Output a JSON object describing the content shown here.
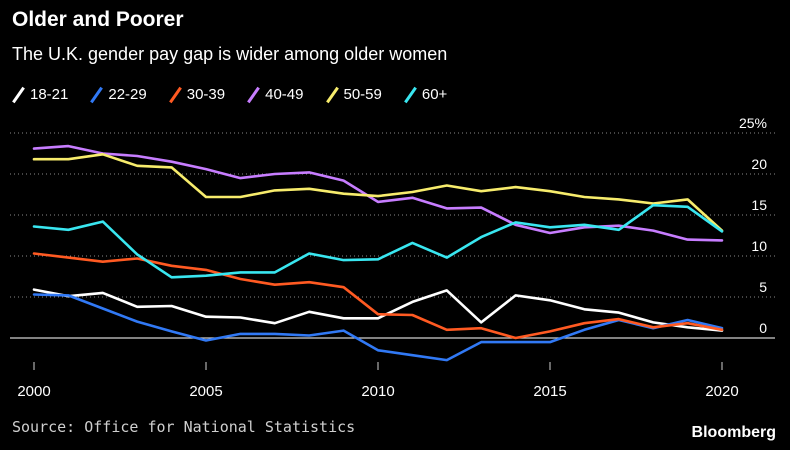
{
  "chart_data": {
    "type": "line",
    "title": "Older and Poorer",
    "subtitle": "The U.K. gender pay gap is wider among older women",
    "unit": "%",
    "x": [
      2000,
      2001,
      2002,
      2003,
      2004,
      2005,
      2006,
      2007,
      2008,
      2009,
      2010,
      2011,
      2012,
      2013,
      2014,
      2015,
      2016,
      2017,
      2018,
      2019,
      2020
    ],
    "xticks": [
      2000,
      2005,
      2010,
      2015,
      2020
    ],
    "yticks": [
      0,
      5,
      10,
      15,
      20,
      25
    ],
    "ylim": [
      -1,
      25
    ],
    "series": [
      {
        "name": "18-21",
        "color": "#ffffff",
        "values": [
          5.9,
          5.1,
          5.5,
          3.8,
          3.9,
          2.6,
          2.5,
          1.8,
          3.2,
          2.4,
          2.4,
          4.4,
          5.8,
          1.9,
          5.2,
          4.6,
          3.5,
          3.1,
          1.9,
          1.3,
          0.9
        ]
      },
      {
        "name": "22-29",
        "color": "#3179f5",
        "values": [
          5.3,
          5.2,
          3.6,
          2.0,
          0.8,
          -0.3,
          0.5,
          0.5,
          0.3,
          0.9,
          -1.5,
          -2.1,
          -2.7,
          -0.5,
          -0.5,
          -0.5,
          1.0,
          2.2,
          1.2,
          2.2,
          1.2
        ]
      },
      {
        "name": "30-39",
        "color": "#ff5a22",
        "values": [
          10.3,
          9.8,
          9.3,
          9.7,
          8.8,
          8.3,
          7.2,
          6.5,
          6.8,
          6.2,
          2.9,
          2.8,
          1.0,
          1.2,
          0.0,
          0.8,
          1.8,
          2.3,
          1.3,
          1.8,
          1.0
        ]
      },
      {
        "name": "40-49",
        "color": "#c77dff",
        "values": [
          23.1,
          23.4,
          22.5,
          22.2,
          21.5,
          20.6,
          19.5,
          20.0,
          20.2,
          19.2,
          16.6,
          17.1,
          15.8,
          15.9,
          13.8,
          12.8,
          13.5,
          13.7,
          13.1,
          12.0,
          11.9
        ]
      },
      {
        "name": "50-59",
        "color": "#f7ec6c",
        "values": [
          21.8,
          21.8,
          22.4,
          21.0,
          20.8,
          17.2,
          17.2,
          18.0,
          18.2,
          17.6,
          17.3,
          17.8,
          18.6,
          17.9,
          18.4,
          17.9,
          17.2,
          16.9,
          16.4,
          16.9,
          13.1
        ]
      },
      {
        "name": "60+",
        "color": "#39e6f0",
        "values": [
          13.6,
          13.2,
          14.2,
          10.2,
          7.4,
          7.6,
          8.0,
          8.0,
          10.3,
          9.5,
          9.6,
          11.6,
          9.8,
          12.3,
          14.1,
          13.5,
          13.8,
          13.2,
          16.2,
          16.0,
          13.0
        ]
      }
    ],
    "source": "Source: Office for National Statistics",
    "brand": "Bloomberg"
  }
}
